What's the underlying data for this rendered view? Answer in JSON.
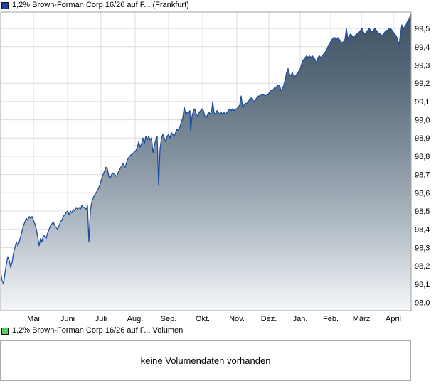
{
  "chart_data": {
    "type": "area",
    "title": "1,2% Brown-Forman Corp 16/26 auf F... (Frankfurt)",
    "xlabel": "",
    "ylabel": "",
    "grid": true,
    "legend_position": "top-left",
    "marker_color": "#1e3f9f",
    "line_color": "#1d4da0",
    "grid_color": "#dcdcdc",
    "border_color": "#a3a3a3",
    "fill_gradient": [
      [
        "0",
        "#3e5164"
      ],
      [
        "0.22",
        "#566979"
      ],
      [
        "0.45",
        "#7e8d9a"
      ],
      [
        "0.68",
        "#a9b4be"
      ],
      [
        "0.88",
        "#d8dee3"
      ],
      [
        "1",
        "#f5f7f9"
      ]
    ],
    "ylim": [
      97.955,
      99.59
    ],
    "y_ticks": [
      {
        "value": 98.0,
        "label": "98,0"
      },
      {
        "value": 98.1,
        "label": "98,1"
      },
      {
        "value": 98.2,
        "label": "98,2"
      },
      {
        "value": 98.3,
        "label": "98,3"
      },
      {
        "value": 98.4,
        "label": "98,4"
      },
      {
        "value": 98.5,
        "label": "98,5"
      },
      {
        "value": 98.6,
        "label": "98,6"
      },
      {
        "value": 98.7,
        "label": "98,7"
      },
      {
        "value": 98.8,
        "label": "98,8"
      },
      {
        "value": 98.9,
        "label": "98,9"
      },
      {
        "value": 99.0,
        "label": "99,0"
      },
      {
        "value": 99.1,
        "label": "99,1"
      },
      {
        "value": 99.2,
        "label": "99,2"
      },
      {
        "value": 99.3,
        "label": "99,3"
      },
      {
        "value": 99.4,
        "label": "99,4"
      },
      {
        "value": 99.5,
        "label": "99,5"
      }
    ],
    "x_ticks": [
      {
        "px": 47,
        "label": "Mai"
      },
      {
        "px": 95,
        "label": "Juni"
      },
      {
        "px": 142,
        "label": "Juli"
      },
      {
        "px": 190,
        "label": "Aug."
      },
      {
        "px": 237,
        "label": "Sep."
      },
      {
        "px": 285,
        "label": "Okt."
      },
      {
        "px": 333,
        "label": "Nov."
      },
      {
        "px": 378,
        "label": "Dez."
      },
      {
        "px": 422,
        "label": "Jan."
      },
      {
        "px": 465,
        "label": "Feb."
      },
      {
        "px": 508,
        "label": "März"
      },
      {
        "px": 553,
        "label": "April"
      }
    ],
    "x_unit": "plot_px (0-577, Mai through April)",
    "points": [
      [
        0,
        98.16
      ],
      [
        2,
        98.12
      ],
      [
        4,
        98.1
      ],
      [
        6,
        98.16
      ],
      [
        8,
        98.21
      ],
      [
        10,
        98.25
      ],
      [
        12,
        98.23
      ],
      [
        14,
        98.19
      ],
      [
        16,
        98.22
      ],
      [
        18,
        98.27
      ],
      [
        20,
        98.3
      ],
      [
        22,
        98.33
      ],
      [
        24,
        98.31
      ],
      [
        26,
        98.33
      ],
      [
        28,
        98.36
      ],
      [
        30,
        98.39
      ],
      [
        32,
        98.42
      ],
      [
        34,
        98.44
      ],
      [
        36,
        98.46
      ],
      [
        38,
        98.45
      ],
      [
        40,
        98.47
      ],
      [
        42,
        98.46
      ],
      [
        44,
        98.47
      ],
      [
        46,
        98.45
      ],
      [
        48,
        98.43
      ],
      [
        50,
        98.4
      ],
      [
        52,
        98.36
      ],
      [
        54,
        98.31
      ],
      [
        56,
        98.35
      ],
      [
        58,
        98.33
      ],
      [
        60,
        98.37
      ],
      [
        62,
        98.36
      ],
      [
        64,
        98.35
      ],
      [
        66,
        98.38
      ],
      [
        68,
        98.4
      ],
      [
        70,
        98.42
      ],
      [
        72,
        98.43
      ],
      [
        74,
        98.44
      ],
      [
        76,
        98.42
      ],
      [
        78,
        98.41
      ],
      [
        80,
        98.4
      ],
      [
        82,
        98.42
      ],
      [
        84,
        98.44
      ],
      [
        86,
        98.45
      ],
      [
        88,
        98.47
      ],
      [
        90,
        98.48
      ],
      [
        92,
        98.49
      ],
      [
        94,
        98.5
      ],
      [
        96,
        98.48
      ],
      [
        98,
        98.5
      ],
      [
        100,
        98.49
      ],
      [
        102,
        98.51
      ],
      [
        104,
        98.5
      ],
      [
        106,
        98.52
      ],
      [
        108,
        98.51
      ],
      [
        110,
        98.52
      ],
      [
        112,
        98.51
      ],
      [
        114,
        98.53
      ],
      [
        116,
        98.52
      ],
      [
        118,
        98.52
      ],
      [
        120,
        98.51
      ],
      [
        122,
        98.53
      ],
      [
        124,
        98.33
      ],
      [
        126,
        98.5
      ],
      [
        128,
        98.55
      ],
      [
        131,
        98.58
      ],
      [
        134,
        98.6
      ],
      [
        137,
        98.62
      ],
      [
        140,
        98.65
      ],
      [
        143,
        98.69
      ],
      [
        146,
        98.72
      ],
      [
        148,
        98.74
      ],
      [
        150,
        98.73
      ],
      [
        152,
        98.69
      ],
      [
        154,
        98.68
      ],
      [
        157,
        98.71
      ],
      [
        160,
        98.7
      ],
      [
        163,
        98.69
      ],
      [
        166,
        98.72
      ],
      [
        169,
        98.74
      ],
      [
        172,
        98.76
      ],
      [
        175,
        98.74
      ],
      [
        178,
        98.78
      ],
      [
        181,
        98.8
      ],
      [
        184,
        98.81
      ],
      [
        187,
        98.82
      ],
      [
        190,
        98.83
      ],
      [
        192,
        98.85
      ],
      [
        194,
        98.88
      ],
      [
        196,
        98.85
      ],
      [
        198,
        98.87
      ],
      [
        200,
        98.9
      ],
      [
        202,
        98.87
      ],
      [
        204,
        98.91
      ],
      [
        206,
        98.89
      ],
      [
        208,
        98.91
      ],
      [
        210,
        98.89
      ],
      [
        212,
        98.9
      ],
      [
        214,
        98.82
      ],
      [
        216,
        98.86
      ],
      [
        218,
        98.89
      ],
      [
        220,
        98.91
      ],
      [
        222,
        98.64
      ],
      [
        224,
        98.84
      ],
      [
        226,
        98.9
      ],
      [
        228,
        98.92
      ],
      [
        230,
        98.9
      ],
      [
        232,
        98.88
      ],
      [
        234,
        98.91
      ],
      [
        236,
        98.92
      ],
      [
        238,
        98.9
      ],
      [
        240,
        98.93
      ],
      [
        242,
        98.92
      ],
      [
        244,
        98.91
      ],
      [
        246,
        98.93
      ],
      [
        248,
        98.95
      ],
      [
        250,
        98.94
      ],
      [
        252,
        98.96
      ],
      [
        254,
        98.99
      ],
      [
        256,
        99.01
      ],
      [
        258,
        99.07
      ],
      [
        260,
        99.03
      ],
      [
        262,
        99.04
      ],
      [
        264,
        99.04
      ],
      [
        266,
        99.05
      ],
      [
        267,
        98.94
      ],
      [
        269,
        99.02
      ],
      [
        271,
        99.05
      ],
      [
        273,
        99.06
      ],
      [
        275,
        99.03
      ],
      [
        277,
        99.02
      ],
      [
        279,
        99.04
      ],
      [
        281,
        99.05
      ],
      [
        283,
        99.06
      ],
      [
        285,
        99.05
      ],
      [
        287,
        99.02
      ],
      [
        289,
        99.01
      ],
      [
        291,
        99.03
      ],
      [
        293,
        99.04
      ],
      [
        295,
        99.03
      ],
      [
        297,
        99.06
      ],
      [
        298,
        99.1
      ],
      [
        300,
        99.04
      ],
      [
        302,
        99.03
      ],
      [
        304,
        99.05
      ],
      [
        306,
        99.04
      ],
      [
        308,
        99.03
      ],
      [
        310,
        99.04
      ],
      [
        312,
        99.03
      ],
      [
        314,
        99.04
      ],
      [
        316,
        99.03
      ],
      [
        318,
        99.04
      ],
      [
        320,
        99.05
      ],
      [
        322,
        99.06
      ],
      [
        324,
        99.05
      ],
      [
        326,
        99.06
      ],
      [
        328,
        99.05
      ],
      [
        330,
        99.06
      ],
      [
        332,
        99.06
      ],
      [
        334,
        99.07
      ],
      [
        336,
        99.08
      ],
      [
        338,
        99.13
      ],
      [
        340,
        99.07
      ],
      [
        342,
        99.08
      ],
      [
        344,
        99.09
      ],
      [
        346,
        99.09
      ],
      [
        348,
        99.1
      ],
      [
        350,
        99.11
      ],
      [
        352,
        99.12
      ],
      [
        354,
        99.11
      ],
      [
        356,
        99.1
      ],
      [
        358,
        99.11
      ],
      [
        360,
        99.12
      ],
      [
        362,
        99.13
      ],
      [
        364,
        99.13
      ],
      [
        366,
        99.14
      ],
      [
        368,
        99.14
      ],
      [
        370,
        99.14
      ],
      [
        372,
        99.13
      ],
      [
        374,
        99.14
      ],
      [
        376,
        99.14
      ],
      [
        378,
        99.15
      ],
      [
        380,
        99.16
      ],
      [
        382,
        99.16
      ],
      [
        384,
        99.17
      ],
      [
        386,
        99.18
      ],
      [
        388,
        99.18
      ],
      [
        390,
        99.19
      ],
      [
        392,
        99.19
      ],
      [
        394,
        99.16
      ],
      [
        396,
        99.17
      ],
      [
        398,
        99.19
      ],
      [
        400,
        99.22
      ],
      [
        402,
        99.26
      ],
      [
        404,
        99.28
      ],
      [
        406,
        99.25
      ],
      [
        408,
        99.24
      ],
      [
        410,
        99.26
      ],
      [
        412,
        99.23
      ],
      [
        414,
        99.24
      ],
      [
        416,
        99.25
      ],
      [
        418,
        99.26
      ],
      [
        420,
        99.27
      ],
      [
        422,
        99.29
      ],
      [
        424,
        99.32
      ],
      [
        426,
        99.33
      ],
      [
        428,
        99.34
      ],
      [
        430,
        99.35
      ],
      [
        432,
        99.34
      ],
      [
        434,
        99.35
      ],
      [
        436,
        99.34
      ],
      [
        438,
        99.35
      ],
      [
        440,
        99.34
      ],
      [
        442,
        99.33
      ],
      [
        444,
        99.31
      ],
      [
        446,
        99.34
      ],
      [
        448,
        99.35
      ],
      [
        450,
        99.34
      ],
      [
        452,
        99.35
      ],
      [
        454,
        99.36
      ],
      [
        456,
        99.37
      ],
      [
        458,
        99.38
      ],
      [
        460,
        99.4
      ],
      [
        462,
        99.41
      ],
      [
        464,
        99.43
      ],
      [
        466,
        99.44
      ],
      [
        468,
        99.45
      ],
      [
        470,
        99.45
      ],
      [
        472,
        99.44
      ],
      [
        474,
        99.45
      ],
      [
        476,
        99.44
      ],
      [
        478,
        99.43
      ],
      [
        480,
        99.42
      ],
      [
        482,
        99.43
      ],
      [
        484,
        99.44
      ],
      [
        486,
        99.5
      ],
      [
        488,
        99.44
      ],
      [
        490,
        99.46
      ],
      [
        492,
        99.47
      ],
      [
        494,
        99.46
      ],
      [
        496,
        99.45
      ],
      [
        498,
        99.46
      ],
      [
        500,
        99.47
      ],
      [
        502,
        99.47
      ],
      [
        504,
        99.48
      ],
      [
        506,
        99.49
      ],
      [
        508,
        99.5
      ],
      [
        510,
        99.48
      ],
      [
        512,
        99.47
      ],
      [
        514,
        99.48
      ],
      [
        516,
        99.49
      ],
      [
        518,
        99.5
      ],
      [
        520,
        99.49
      ],
      [
        522,
        99.48
      ],
      [
        524,
        99.49
      ],
      [
        526,
        99.5
      ],
      [
        528,
        99.49
      ],
      [
        530,
        99.48
      ],
      [
        532,
        99.47
      ],
      [
        534,
        99.47
      ],
      [
        536,
        99.46
      ],
      [
        538,
        99.47
      ],
      [
        540,
        99.48
      ],
      [
        542,
        99.49
      ],
      [
        544,
        99.49
      ],
      [
        546,
        99.5
      ],
      [
        548,
        99.5
      ],
      [
        550,
        99.49
      ],
      [
        552,
        99.48
      ],
      [
        554,
        99.47
      ],
      [
        556,
        99.46
      ],
      [
        558,
        99.44
      ],
      [
        560,
        99.41
      ],
      [
        562,
        99.47
      ],
      [
        564,
        99.52
      ],
      [
        566,
        99.5
      ],
      [
        568,
        99.51
      ],
      [
        570,
        99.52
      ],
      [
        572,
        99.54
      ],
      [
        574,
        99.55
      ],
      [
        576,
        99.57
      ],
      [
        577,
        99.58
      ]
    ]
  },
  "volume_panel": {
    "legend_label": "1,2% Brown-Forman Corp 16/26 auf F... Volumen",
    "legend_marker_color": "#5ecb5e",
    "message": "keine Volumendaten vorhanden"
  }
}
